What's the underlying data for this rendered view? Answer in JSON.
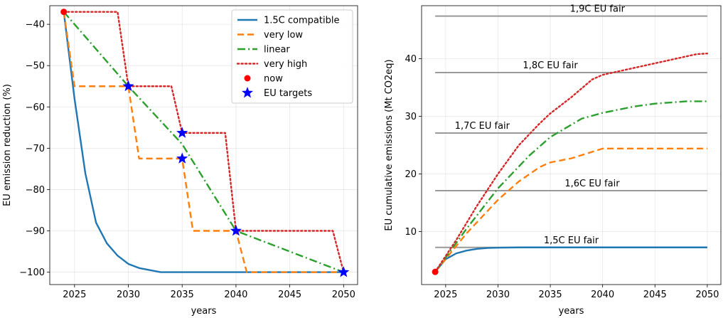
{
  "chart_data": [
    {
      "type": "line",
      "xlabel": "years",
      "ylabel": "EU emission reduction (%)",
      "xlim": [
        2022.7,
        2051.3
      ],
      "ylim": [
        -103,
        -35.5
      ],
      "xticks": [
        2025,
        2030,
        2035,
        2040,
        2045,
        2050
      ],
      "yticks": [
        -100,
        -90,
        -80,
        -70,
        -60,
        -50,
        -40
      ],
      "grid": true,
      "legend_position": "top-right",
      "series": [
        {
          "name": "1.5C compatible",
          "color": "#1f77b4",
          "style": "solid",
          "x": [
            2024,
            2025,
            2026,
            2027,
            2028,
            2029,
            2030,
            2031,
            2032,
            2033,
            2034,
            2035,
            2040,
            2045,
            2050
          ],
          "y": [
            -37,
            -58,
            -76,
            -88,
            -93,
            -96,
            -98,
            -99,
            -99.5,
            -100,
            -100,
            -100,
            -100,
            -100,
            -100
          ]
        },
        {
          "name": "very low",
          "color": "#ff7f0e",
          "style": "dashed",
          "x": [
            2024,
            2025,
            2030,
            2031,
            2035,
            2036,
            2040,
            2041,
            2050
          ],
          "y": [
            -37,
            -55,
            -55,
            -72.5,
            -72.5,
            -90,
            -90,
            -100,
            -100
          ]
        },
        {
          "name": "linear",
          "color": "#2ca02c",
          "style": "dashdot",
          "x": [
            2024,
            2030,
            2035,
            2040,
            2050
          ],
          "y": [
            -37,
            -55,
            -69,
            -90,
            -100
          ]
        },
        {
          "name": "very high",
          "color": "#d62728",
          "style": "dotted",
          "x": [
            2024,
            2029,
            2030,
            2034,
            2035,
            2039,
            2040,
            2049,
            2050
          ],
          "y": [
            -37,
            -37,
            -55,
            -55,
            -66.3,
            -66.3,
            -90,
            -90,
            -100
          ]
        }
      ],
      "markers": [
        {
          "name": "now",
          "color": "#ff0000",
          "shape": "circle",
          "x": [
            2024
          ],
          "y": [
            -37
          ]
        },
        {
          "name": "EU targets",
          "color": "#0000ff",
          "shape": "star",
          "x": [
            2030,
            2035,
            2035,
            2040,
            2050
          ],
          "y": [
            -55,
            -66.3,
            -72.5,
            -90,
            -100
          ]
        }
      ]
    },
    {
      "type": "line",
      "xlabel": "years",
      "ylabel": "EU cumulative emissions (Mt CO2eq)",
      "xlim": [
        2022.7,
        2051.3
      ],
      "ylim": [
        0.8,
        49.2
      ],
      "xticks": [
        2025,
        2030,
        2035,
        2040,
        2045,
        2050
      ],
      "yticks": [
        10,
        20,
        30,
        40
      ],
      "grid": true,
      "series": [
        {
          "color": "#1f77b4",
          "style": "solid",
          "x": [
            2024,
            2025,
            2026,
            2027,
            2028,
            2029,
            2030,
            2032,
            2035,
            2040,
            2045,
            2050
          ],
          "y": [
            3,
            5.2,
            6.2,
            6.7,
            7.0,
            7.15,
            7.2,
            7.25,
            7.25,
            7.25,
            7.25,
            7.25
          ]
        },
        {
          "color": "#ff7f0e",
          "style": "dashed",
          "x": [
            2024,
            2027,
            2030,
            2032,
            2034,
            2035,
            2037,
            2040,
            2045,
            2050
          ],
          "y": [
            3,
            9.7,
            15.5,
            18.7,
            21.2,
            22.0,
            22.7,
            24.4,
            24.4,
            24.4
          ]
        },
        {
          "color": "#2ca02c",
          "style": "dashdot",
          "x": [
            2024,
            2027,
            2030,
            2033,
            2035,
            2038,
            2040,
            2043,
            2045,
            2048,
            2050
          ],
          "y": [
            3,
            10.5,
            17.5,
            23.2,
            26.4,
            29.6,
            30.6,
            31.7,
            32.2,
            32.6,
            32.6
          ]
        },
        {
          "color": "#d62728",
          "style": "dotted",
          "x": [
            2024,
            2026,
            2028,
            2030,
            2032,
            2034,
            2035,
            2037,
            2039,
            2040,
            2043,
            2046,
            2049,
            2050
          ],
          "y": [
            3,
            8.5,
            14.5,
            20.0,
            25.0,
            28.8,
            30.5,
            33.3,
            36.4,
            37.2,
            38.4,
            39.6,
            40.8,
            40.9
          ]
        }
      ],
      "markers": [
        {
          "name": "now",
          "color": "#ff0000",
          "shape": "circle",
          "x": [
            2024
          ],
          "y": [
            3
          ]
        }
      ],
      "hlines": [
        {
          "label": "1,5C EU fair",
          "y": 7.25,
          "label_x": 2037.0
        },
        {
          "label": "1,6C EU fair",
          "y": 17.1,
          "label_x": 2039.0
        },
        {
          "label": "1,7C EU fair",
          "y": 27.1,
          "label_x": 2028.5
        },
        {
          "label": "1,8C EU fair",
          "y": 37.6,
          "label_x": 2035.0
        },
        {
          "label": "1,9C EU fair",
          "y": 47.4,
          "label_x": 2039.5
        }
      ],
      "hline_color": "#999999"
    }
  ]
}
